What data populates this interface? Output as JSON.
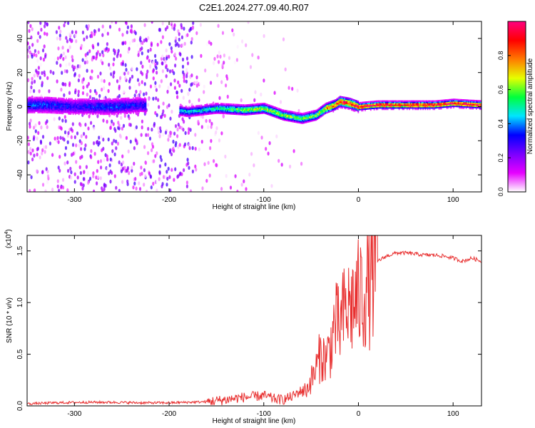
{
  "title": "C2E1.2024.277.09.40.R07",
  "chart_data": [
    {
      "type": "heatmap",
      "xlabel": "Height of straight line (km)",
      "ylabel": "Frequency (Hz)",
      "xlim": [
        -350,
        130
      ],
      "ylim": [
        -50,
        50
      ],
      "xticks": [
        -300,
        -200,
        -100,
        0,
        100
      ],
      "yticks": [
        -40,
        -20,
        0,
        20,
        40
      ],
      "colorbar": {
        "label": "Normalized spectral amplitude",
        "range": [
          0,
          1
        ],
        "ticks": [
          "0.0",
          "0.2",
          "0.4",
          "0.6",
          "0.8"
        ],
        "colors": [
          "#ffffff",
          "#e600ff",
          "#7a00ff",
          "#0000ff",
          "#00e5ff",
          "#00ff3c",
          "#e6ff00",
          "#ff7a00",
          "#ff0000",
          "#ff0080"
        ]
      },
      "ridge": {
        "x": [
          -330,
          -300,
          -260,
          -230,
          -180,
          -150,
          -120,
          -100,
          -80,
          -60,
          -45,
          -35,
          -25,
          -20,
          -10,
          0,
          20,
          50,
          80,
          100,
          130
        ],
        "y": [
          1,
          0,
          0,
          1,
          -3,
          -1,
          -2,
          -1,
          -5,
          -7,
          -5,
          -1,
          1,
          3,
          2,
          0,
          1,
          1,
          1,
          2,
          1
        ]
      },
      "max_ridge_amplitude": [
        0.35,
        0.3,
        0.35,
        0.3,
        0.45,
        0.5,
        0.6,
        0.65,
        0.6,
        0.55,
        0.6,
        0.75,
        0.85,
        0.9,
        0.9,
        0.95,
        0.95,
        0.95,
        0.95,
        0.95,
        0.95
      ]
    },
    {
      "type": "line",
      "xlabel": "Height of straight line (km)",
      "ylabel": "SNR (10 * v/v)",
      "scale_label": "(x10",
      "scale_exp": "4",
      "scale_close": ")",
      "xlim": [
        -350,
        130
      ],
      "ylim": [
        0,
        16500
      ],
      "xticks": [
        -300,
        -200,
        -100,
        0,
        100
      ],
      "yticks": [
        0,
        5000,
        10000,
        15000
      ],
      "ytick_labels": [
        "0.0",
        "0.5",
        "1.0",
        "1.5"
      ],
      "color": "#e83030",
      "series": [
        {
          "x": [
            -350,
            -320,
            -290,
            -260,
            -230,
            -200,
            -180,
            -160,
            -140,
            -125,
            -110,
            -100,
            -90,
            -80,
            -70,
            -60,
            -55,
            -50,
            -45,
            -40,
            -35,
            -30,
            -25,
            -20,
            -15,
            -10,
            -5,
            0,
            5,
            10,
            15,
            20,
            30,
            40,
            50,
            60,
            70,
            80,
            90,
            100,
            110,
            120,
            130
          ],
          "y": [
            200,
            300,
            350,
            350,
            300,
            300,
            350,
            400,
            600,
            800,
            900,
            1000,
            700,
            600,
            900,
            1500,
            1500,
            2500,
            3500,
            5000,
            4500,
            5500,
            8000,
            7500,
            9000,
            9500,
            10000,
            10500,
            11000,
            11500,
            12500,
            14000,
            14500,
            14800,
            14800,
            14700,
            14600,
            14600,
            14500,
            14300,
            14000,
            14300,
            14000
          ]
        }
      ]
    }
  ]
}
